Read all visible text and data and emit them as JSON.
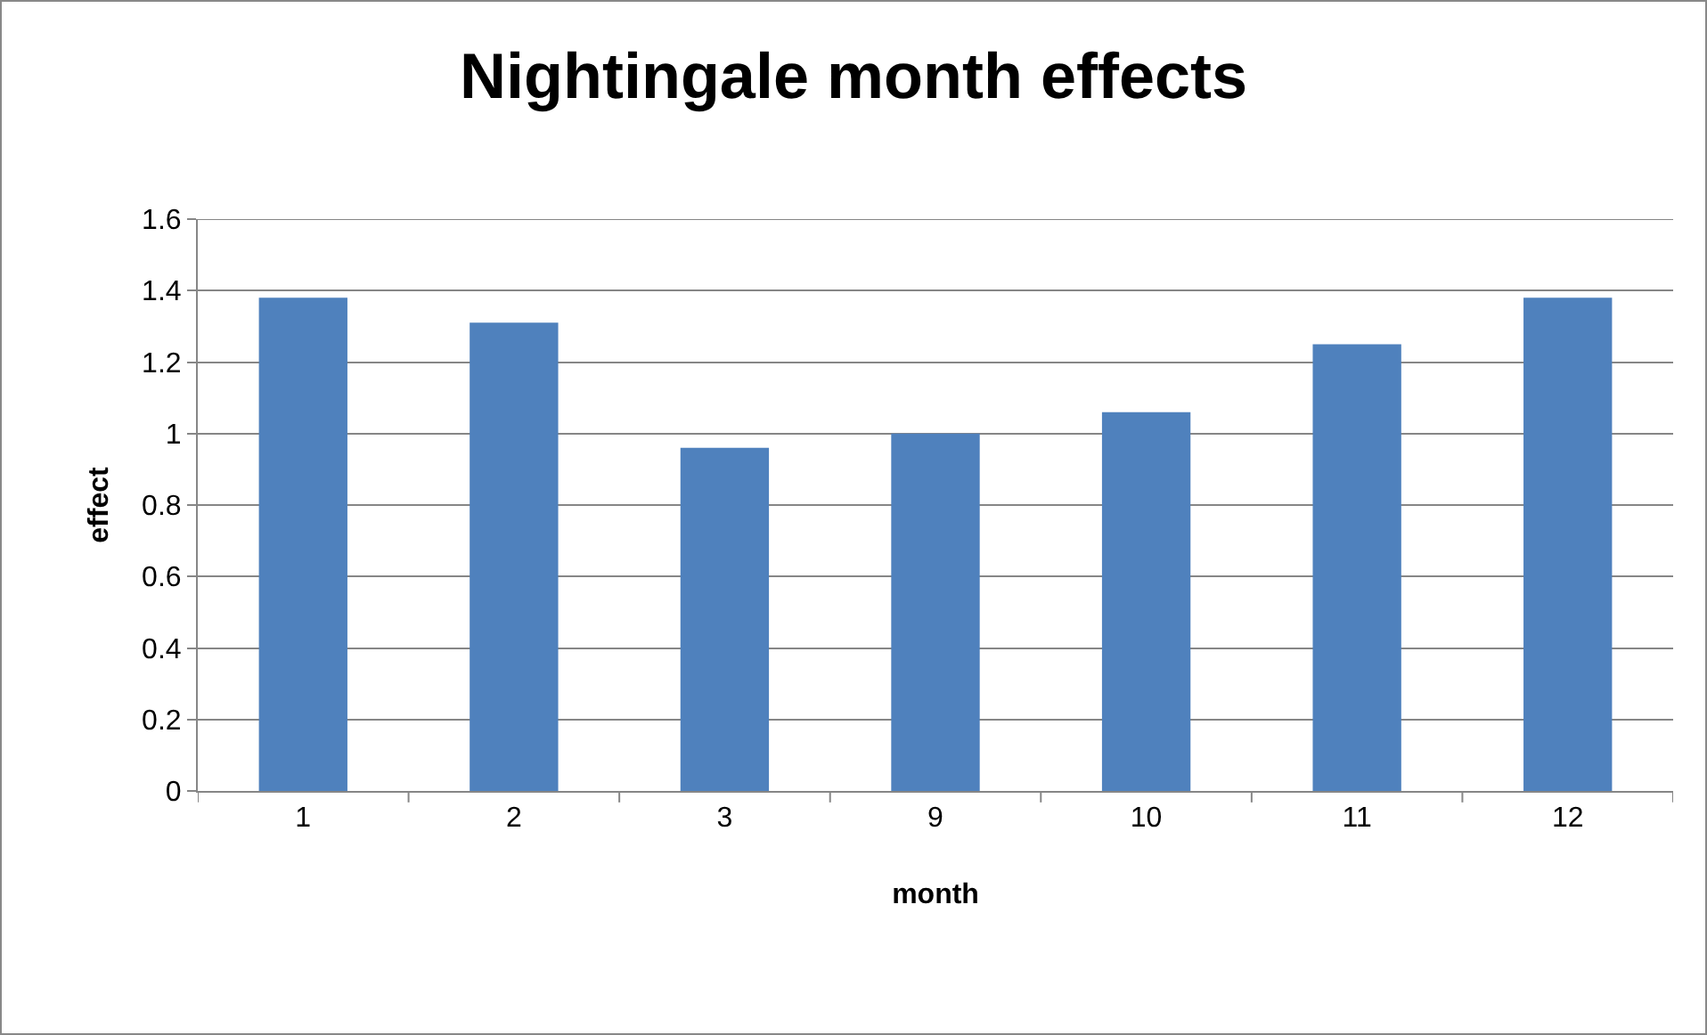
{
  "chart_data": {
    "type": "bar",
    "title": "Nightingale month effects",
    "xlabel": "month",
    "ylabel": "effect",
    "categories": [
      "1",
      "2",
      "3",
      "9",
      "10",
      "11",
      "12"
    ],
    "series": [
      {
        "color": "#4f81bd",
        "values": [
          1.38,
          1.31,
          0.96,
          1.0,
          1.06,
          1.25,
          1.38
        ]
      }
    ],
    "ylim": [
      0,
      1.6
    ],
    "yticks": [
      0,
      0.2,
      0.4,
      0.6,
      0.8,
      1,
      1.2,
      1.4,
      1.6
    ],
    "grid": "y"
  }
}
